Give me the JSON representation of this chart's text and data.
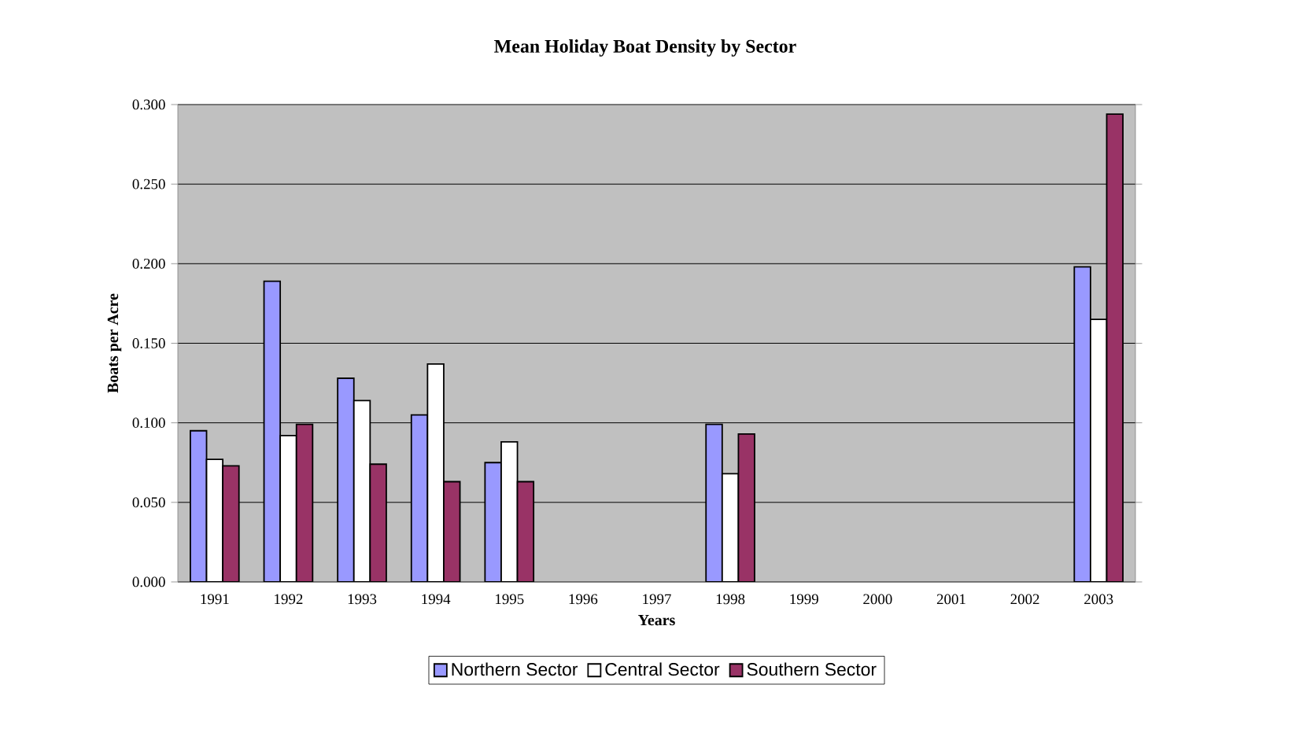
{
  "chart_data": {
    "type": "bar",
    "title": "Mean Holiday Boat Density by Sector",
    "xlabel": "Years",
    "ylabel": "Boats per Acre",
    "categories": [
      "1991",
      "1992",
      "1993",
      "1994",
      "1995",
      "1996",
      "1997",
      "1998",
      "1999",
      "2000",
      "2001",
      "2002",
      "2003"
    ],
    "series": [
      {
        "name": "Northern Sector",
        "color": "#9999ff",
        "values": [
          0.095,
          0.189,
          0.128,
          0.105,
          0.075,
          null,
          null,
          0.099,
          null,
          null,
          null,
          null,
          0.198
        ]
      },
      {
        "name": "Central Sector",
        "color": "#ffffff",
        "values": [
          0.077,
          0.092,
          0.114,
          0.137,
          0.088,
          null,
          null,
          0.068,
          null,
          null,
          null,
          null,
          0.165
        ]
      },
      {
        "name": "Southern Sector",
        "color": "#993366",
        "values": [
          0.073,
          0.099,
          0.074,
          0.063,
          0.063,
          null,
          null,
          0.093,
          null,
          null,
          null,
          null,
          0.294
        ]
      }
    ],
    "ylim": [
      0,
      0.3
    ],
    "yticks": [
      {
        "value": 0,
        "label": "0.000"
      },
      {
        "value": 0.05,
        "label": "0.050"
      },
      {
        "value": 0.1,
        "label": "0.100"
      },
      {
        "value": 0.15,
        "label": "0.150"
      },
      {
        "value": 0.2,
        "label": "0.200"
      },
      {
        "value": 0.25,
        "label": "0.250"
      },
      {
        "value": 0.3,
        "label": "0.300"
      }
    ],
    "grid": "y",
    "legend": "bottom"
  }
}
